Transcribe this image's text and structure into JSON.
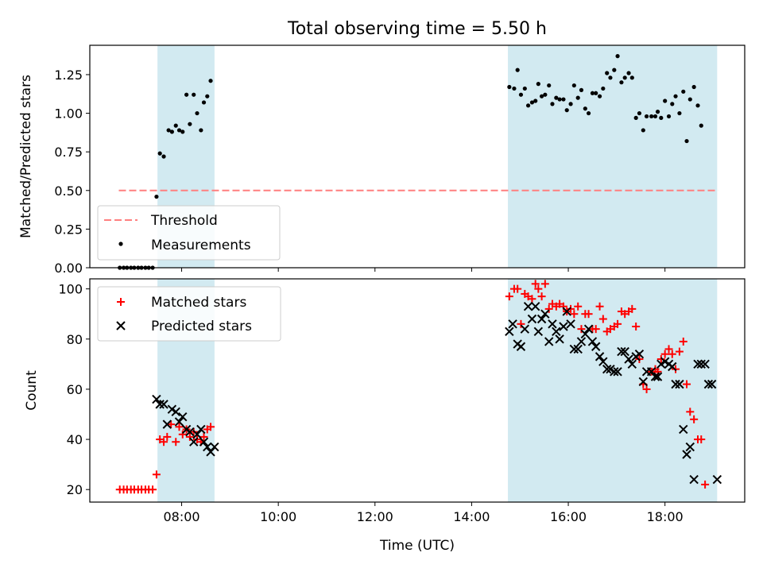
{
  "title": "Total observing time = 5.50 h",
  "colors": {
    "shade": "#add8e6",
    "threshold": "#ff7f7f",
    "measurement": "#000000",
    "matched": "#ff0000",
    "predicted": "#000000"
  },
  "chart_data": [
    {
      "type": "scatter",
      "ylabel": "Matched/Predicted stars",
      "xlabel": "",
      "xlim": [
        6.1,
        19.65
      ],
      "ylim": [
        0,
        1.44
      ],
      "y_ticks": [
        "0.00",
        "0.25",
        "0.50",
        "0.75",
        "1.00",
        "1.25"
      ],
      "y_tick_values": [
        0,
        0.25,
        0.5,
        0.75,
        1.0,
        1.25
      ],
      "x_ticks": [
        "08:00",
        "10:00",
        "12:00",
        "14:00",
        "16:00",
        "18:00"
      ],
      "x_tick_values": [
        8,
        10,
        12,
        14,
        16,
        18
      ],
      "shaded_intervals": [
        [
          7.5,
          8.68
        ],
        [
          14.75,
          19.08
        ]
      ],
      "threshold": {
        "name": "Threshold",
        "value": 0.5,
        "x": [
          6.7,
          19.1
        ]
      },
      "legend_position": "lower-left",
      "series": [
        {
          "name": "Measurements",
          "x": [
            6.72,
            6.8,
            6.87,
            6.95,
            7.02,
            7.1,
            7.17,
            7.25,
            7.32,
            7.4,
            7.48,
            7.55,
            7.63,
            7.73,
            7.8,
            7.88,
            7.95,
            8.02,
            8.1,
            8.17,
            8.25,
            8.32,
            8.4,
            8.46,
            8.53,
            8.6,
            8.68,
            14.78,
            14.88,
            14.95,
            15.02,
            15.1,
            15.17,
            15.25,
            15.32,
            15.38,
            15.45,
            15.52,
            15.6,
            15.67,
            15.75,
            15.82,
            15.9,
            15.97,
            16.05,
            16.12,
            16.2,
            16.27,
            16.35,
            16.42,
            16.5,
            16.57,
            16.65,
            16.72,
            16.8,
            16.87,
            16.95,
            17.02,
            17.1,
            17.17,
            17.25,
            17.32,
            17.4,
            17.47,
            17.55,
            17.62,
            17.72,
            17.8,
            17.85,
            17.92,
            18.0,
            18.08,
            18.15,
            18.22,
            18.3,
            18.38,
            18.45,
            18.52,
            18.6,
            18.68,
            18.75,
            18.83,
            18.9,
            18.97,
            19.08
          ],
          "values": [
            0,
            0,
            0,
            0,
            0,
            0,
            0,
            0,
            0,
            0,
            0.46,
            0.74,
            0.72,
            0.89,
            0.88,
            0.92,
            0.89,
            0.88,
            1.12,
            0.93,
            1.12,
            1.0,
            0.89,
            1.07,
            1.11,
            1.21,
            null,
            1.17,
            1.16,
            1.28,
            1.12,
            1.16,
            1.05,
            1.07,
            1.08,
            1.19,
            1.11,
            1.12,
            1.18,
            1.06,
            1.1,
            1.09,
            1.09,
            1.02,
            1.06,
            1.18,
            1.1,
            1.15,
            1.03,
            1.0,
            1.13,
            1.13,
            1.11,
            1.16,
            1.26,
            1.23,
            1.28,
            1.37,
            1.2,
            1.23,
            1.26,
            1.23,
            0.97,
            1.0,
            0.89,
            0.98,
            0.98,
            0.98,
            1.01,
            0.97,
            1.08,
            0.98,
            1.06,
            1.11,
            1.0,
            1.14,
            0.82,
            1.09,
            1.17,
            1.05,
            0.92,
            null,
            null,
            null,
            null
          ]
        }
      ]
    },
    {
      "type": "scatter",
      "ylabel": "Count",
      "xlabel": "Time (UTC)",
      "xlim": [
        6.1,
        19.65
      ],
      "ylim": [
        15,
        104
      ],
      "y_ticks": [
        "20",
        "40",
        "60",
        "80",
        "100"
      ],
      "y_tick_values": [
        20,
        40,
        60,
        80,
        100
      ],
      "x_ticks": [
        "08:00",
        "10:00",
        "12:00",
        "14:00",
        "16:00",
        "18:00"
      ],
      "x_tick_values": [
        8,
        10,
        12,
        14,
        16,
        18
      ],
      "shaded_intervals": [
        [
          7.5,
          8.68
        ],
        [
          14.75,
          19.08
        ]
      ],
      "legend_position": "upper-left",
      "series": [
        {
          "name": "Matched stars",
          "marker": "plus",
          "x": [
            6.72,
            6.8,
            6.87,
            6.95,
            7.02,
            7.1,
            7.17,
            7.25,
            7.32,
            7.4,
            7.48,
            7.55,
            7.63,
            7.7,
            7.78,
            7.88,
            7.95,
            8.02,
            8.1,
            8.17,
            8.25,
            8.32,
            8.4,
            8.46,
            8.53,
            8.6,
            8.68,
            14.78,
            14.88,
            14.95,
            15.02,
            15.1,
            15.17,
            15.25,
            15.32,
            15.38,
            15.45,
            15.52,
            15.6,
            15.67,
            15.75,
            15.82,
            15.9,
            15.97,
            16.05,
            16.12,
            16.2,
            16.27,
            16.35,
            16.42,
            16.5,
            16.57,
            16.65,
            16.72,
            16.8,
            16.87,
            16.95,
            17.02,
            17.1,
            17.17,
            17.25,
            17.32,
            17.4,
            17.47,
            17.55,
            17.62,
            17.72,
            17.8,
            17.85,
            17.92,
            18.0,
            18.08,
            18.15,
            18.22,
            18.3,
            18.38,
            18.45,
            18.52,
            18.6,
            18.68,
            18.75,
            18.83,
            18.9,
            18.97,
            19.08
          ],
          "values": [
            20,
            20,
            20,
            20,
            20,
            20,
            20,
            20,
            20,
            20,
            26,
            40,
            39,
            41,
            46,
            39,
            45,
            42,
            44,
            41,
            43,
            40,
            39,
            41,
            44,
            45,
            null,
            97,
            100,
            100,
            86,
            98,
            97,
            96,
            102,
            100,
            97,
            102,
            92,
            94,
            93,
            94,
            93,
            91,
            92,
            90,
            93,
            84,
            90,
            90,
            84,
            84,
            93,
            88,
            83,
            84,
            85,
            86,
            91,
            90,
            91,
            92,
            85,
            72,
            62,
            60,
            67,
            68,
            67,
            72,
            74,
            76,
            74,
            68,
            75,
            79,
            62,
            51,
            48,
            40,
            40,
            22,
            null,
            null,
            null
          ],
          "x_override": [
            6.72,
            6.8,
            6.87,
            6.95,
            7.02,
            7.1,
            7.17,
            7.25,
            7.32,
            7.4,
            7.48,
            7.55,
            7.63,
            7.7,
            7.78,
            7.88,
            7.95,
            8.02,
            8.1,
            8.17,
            8.25,
            8.32,
            8.4,
            8.46,
            8.53,
            8.6,
            8.68,
            14.78,
            14.88,
            14.95,
            15.02,
            15.1,
            15.17,
            15.25,
            15.32,
            15.38,
            15.45,
            15.52,
            15.6,
            15.67,
            15.75,
            15.82,
            15.9,
            15.97,
            16.05,
            16.12,
            16.2,
            16.27,
            16.35,
            16.42,
            16.5,
            16.57,
            16.65,
            16.72,
            16.8,
            16.87,
            16.95,
            17.02,
            17.1,
            17.17,
            17.25,
            17.32,
            17.4,
            17.47,
            17.55,
            17.62,
            17.72,
            17.8,
            17.85,
            17.92,
            18.0,
            18.08,
            18.15,
            18.22,
            18.3,
            18.38,
            18.45,
            18.52,
            18.6,
            18.68,
            18.75,
            18.83,
            18.9,
            18.97,
            19.08
          ]
        },
        {
          "name": "Predicted stars",
          "marker": "x",
          "x": [
            7.48,
            7.55,
            7.63,
            7.7,
            7.8,
            7.88,
            7.95,
            8.02,
            8.1,
            8.17,
            8.25,
            8.32,
            8.4,
            8.46,
            8.53,
            8.6,
            8.68,
            14.78,
            14.85,
            14.95,
            15.02,
            15.1,
            15.17,
            15.25,
            15.32,
            15.38,
            15.45,
            15.52,
            15.6,
            15.67,
            15.75,
            15.82,
            15.9,
            15.97,
            16.05,
            16.12,
            16.2,
            16.27,
            16.35,
            16.42,
            16.5,
            16.57,
            16.65,
            16.72,
            16.8,
            16.87,
            16.95,
            17.02,
            17.1,
            17.17,
            17.25,
            17.32,
            17.4,
            17.47,
            17.55,
            17.62,
            17.72,
            17.8,
            17.85,
            17.92,
            18.0,
            18.08,
            18.15,
            18.22,
            18.3,
            18.38,
            18.45,
            18.52,
            18.6,
            18.68,
            18.75,
            18.83,
            18.9,
            18.97,
            19.08
          ],
          "values": [
            56,
            54,
            54,
            46,
            52,
            51,
            47,
            49,
            44,
            43,
            39,
            42,
            44,
            39,
            37,
            35,
            37,
            83,
            86,
            78,
            77,
            84,
            93,
            88,
            93,
            83,
            88,
            90,
            79,
            86,
            83,
            80,
            85,
            91,
            86,
            76,
            76,
            79,
            82,
            84,
            79,
            77,
            73,
            71,
            68,
            68,
            67,
            67,
            75,
            75,
            72,
            70,
            73,
            74,
            63,
            67,
            67,
            65,
            65,
            70,
            71,
            70,
            69,
            62,
            62,
            44,
            34,
            37,
            24,
            70,
            70,
            70,
            62,
            62,
            24
          ]
        }
      ]
    }
  ]
}
